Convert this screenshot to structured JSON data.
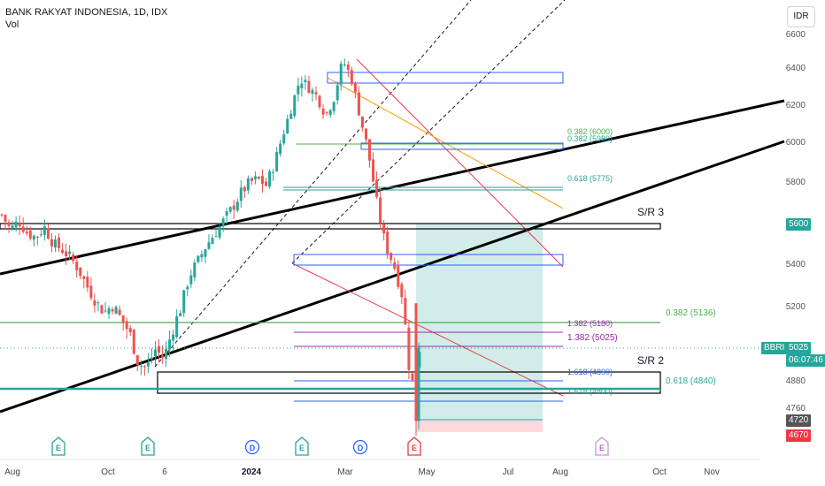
{
  "header": {
    "symbol_line": "BANK RAKYAT INDONESIA, 1D, IDX",
    "volume_label": "Vol"
  },
  "currency_button": "IDR",
  "price_axis": {
    "ticks": [
      "6600",
      "6400",
      "6200",
      "6000",
      "5800",
      "5400",
      "5200",
      "4880",
      "4760"
    ]
  },
  "time_axis": {
    "labels": [
      {
        "text": "Aug",
        "bold": false
      },
      {
        "text": "Oct",
        "bold": false
      },
      {
        "text": "6",
        "bold": false
      },
      {
        "text": "2024",
        "bold": true
      },
      {
        "text": "Mar",
        "bold": false
      },
      {
        "text": "May",
        "bold": false
      },
      {
        "text": "Jul",
        "bold": false
      },
      {
        "text": "Aug",
        "bold": false
      },
      {
        "text": "Oct",
        "bold": false
      },
      {
        "text": "Nov",
        "bold": false
      }
    ]
  },
  "price_tags": {
    "level_5600": "5600",
    "symbol": "BBRI",
    "last_price": "5025",
    "countdown": "06:07:46",
    "level_4720": "4720",
    "level_4670": "4670"
  },
  "drawing_labels": {
    "sr3": "S/R 3",
    "sr2": "S/R 2",
    "fib_0382_upper": "0.382 (6000)",
    "fib_0382_upper_b": "0.382 (5980)",
    "fib_0618_upper": "0.618 (5775)",
    "fib_0382_lower": "0.382 (5136)",
    "fib_1382_a": "1.382 (5180)",
    "fib_1382_b": "1.382 (5025)",
    "fib_1618_a": "1.618 (4890)",
    "fib_0618_lower": "0.618 (4840)",
    "fib_1618_b": "1.618 (4800)"
  },
  "event_markers": [
    {
      "letter": "E",
      "type": "earnings"
    },
    {
      "letter": "E",
      "type": "earnings"
    },
    {
      "letter": "D",
      "type": "dividend"
    },
    {
      "letter": "E",
      "type": "earnings"
    },
    {
      "letter": "D",
      "type": "dividend"
    },
    {
      "letter": "E",
      "type": "earnings"
    },
    {
      "letter": "E",
      "type": "earnings-upcoming"
    }
  ],
  "colors": {
    "up": "#26a69a",
    "down": "#ef5350",
    "blue_box": "#2962ff",
    "fib_green": "#4caf50",
    "fib_purple": "#9c27b0",
    "trend_red": "#f23645",
    "trend_orange": "#ff9800",
    "target_zone": "#b2dfdb",
    "stop_zone": "#ffcdd2"
  },
  "chart_data": {
    "type": "candlestick",
    "title": "BANK RAKYAT INDONESIA, 1D, IDX",
    "symbol": "BBRI",
    "currency": "IDR",
    "ylim": [
      4620,
      6720
    ],
    "last_price": 5025,
    "x_ticks": [
      "Aug",
      "Oct",
      "6",
      "2024",
      "Mar",
      "May",
      "Jul",
      "Aug",
      "Oct",
      "Nov"
    ],
    "y_ticks": [
      6600,
      6400,
      6200,
      6000,
      5800,
      5400,
      5200,
      4880,
      4760
    ],
    "horizontal_levels": [
      {
        "label": "S/R 3",
        "value": 5600
      },
      {
        "label": "S/R 2",
        "value": 4840
      },
      {
        "label": "0.382 (5136)",
        "value": 5136
      },
      {
        "label": "1.382 (5025)",
        "value": 5025
      }
    ],
    "series": [
      {
        "name": "BBRI",
        "close_path": [
          5650,
          5580,
          5620,
          5560,
          5540,
          5590,
          5510,
          5480,
          5440,
          5380,
          5300,
          5230,
          5180,
          5210,
          5150,
          5090,
          4960,
          4940,
          5020,
          4980,
          5100,
          5200,
          5350,
          5420,
          5500,
          5560,
          5620,
          5680,
          5750,
          5800,
          5820,
          5790,
          5900,
          6050,
          6200,
          6350,
          6300,
          6250,
          6150,
          6250,
          6450,
          6350,
          6150,
          5950,
          5700,
          5500,
          5400,
          5250,
          4850,
          5025
        ]
      }
    ]
  }
}
